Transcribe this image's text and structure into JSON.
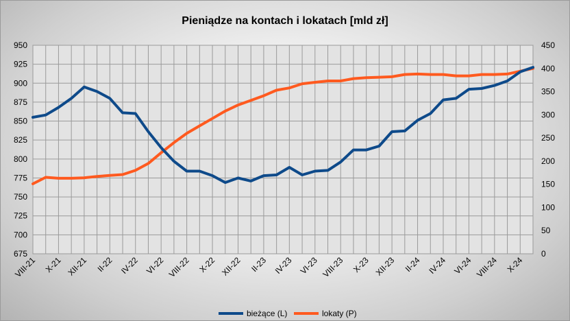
{
  "chart_data": {
    "type": "line",
    "title": "Pieniądze na kontach i lokatach [mld zł]",
    "x_tick_labels": [
      "VIII-21",
      "X-21",
      "XII-21",
      "II-22",
      "IV-22",
      "VI-22",
      "VIII-22",
      "X-22",
      "XII-22",
      "II-23",
      "IV-23",
      "VI-23",
      "VIII-23",
      "X-23",
      "XII-23",
      "II-24",
      "IV-24",
      "VI-24",
      "VIII-24",
      "X-24"
    ],
    "x_tick_every": 2,
    "y_left": {
      "min": 675,
      "max": 950,
      "step": 25,
      "ticks": [
        "675",
        "700",
        "725",
        "750",
        "775",
        "800",
        "825",
        "850",
        "875",
        "900",
        "925",
        "950"
      ]
    },
    "y_right": {
      "min": 0,
      "max": 450,
      "step": 50,
      "ticks": [
        "0",
        "50",
        "100",
        "150",
        "200",
        "250",
        "300",
        "350",
        "400",
        "450"
      ]
    },
    "grid": true,
    "legend_position": "bottom",
    "series": [
      {
        "name": "bieżące (L)",
        "axis": "left",
        "color": "#0e4a8a",
        "values": [
          855,
          858,
          868,
          880,
          895,
          889,
          880,
          861,
          860,
          836,
          815,
          797,
          784,
          784,
          778,
          769,
          775,
          771,
          778,
          779,
          789,
          779,
          784,
          785,
          796,
          812,
          812,
          817,
          836,
          837,
          851,
          860,
          878,
          880,
          892,
          893,
          897,
          903,
          915,
          921
        ]
      },
      {
        "name": "lokaty (P)",
        "axis": "right",
        "color": "#ff5a1f",
        "values": [
          151,
          165,
          163,
          163,
          164,
          167,
          169,
          171,
          180,
          195,
          218,
          240,
          260,
          276,
          292,
          308,
          321,
          331,
          341,
          353,
          358,
          367,
          370,
          373,
          373,
          378,
          380,
          381,
          382,
          387,
          388,
          387,
          387,
          384,
          384,
          387,
          387,
          388,
          394,
          400
        ]
      }
    ]
  }
}
